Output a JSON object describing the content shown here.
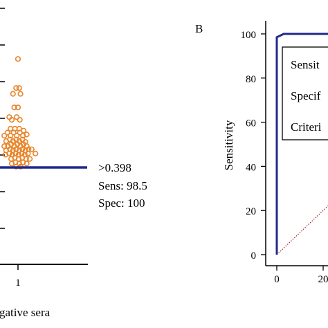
{
  "chart_data": [
    {
      "type": "scatter",
      "panel_label": "",
      "x_tick_labels": [
        "1"
      ],
      "xlabel": "gative sera",
      "ylabel": "",
      "points_relative_to_cutoff": [
        [
          0.0,
          2.8
        ],
        [
          -0.03,
          2.05
        ],
        [
          0.02,
          2.05
        ],
        [
          -0.08,
          1.9
        ],
        [
          0.04,
          1.9
        ],
        [
          -0.06,
          1.55
        ],
        [
          0.0,
          1.55
        ],
        [
          -0.14,
          1.3
        ],
        [
          -0.1,
          1.23
        ],
        [
          -0.02,
          1.3
        ],
        [
          0.03,
          1.23
        ],
        [
          -0.12,
          1.0
        ],
        [
          -0.05,
          1.0
        ],
        [
          0.02,
          1.0
        ],
        [
          0.09,
          0.95
        ],
        [
          -0.22,
          0.82
        ],
        [
          -0.17,
          0.9
        ],
        [
          -0.12,
          0.82
        ],
        [
          -0.07,
          0.9
        ],
        [
          -0.02,
          0.82
        ],
        [
          0.03,
          0.9
        ],
        [
          0.08,
          0.82
        ],
        [
          0.14,
          0.85
        ],
        [
          -0.19,
          0.68
        ],
        [
          -0.13,
          0.72
        ],
        [
          -0.08,
          0.68
        ],
        [
          -0.03,
          0.72
        ],
        [
          0.02,
          0.68
        ],
        [
          0.07,
          0.72
        ],
        [
          0.12,
          0.66
        ],
        [
          -0.22,
          0.55
        ],
        [
          -0.16,
          0.55
        ],
        [
          -0.11,
          0.6
        ],
        [
          -0.06,
          0.55
        ],
        [
          -0.01,
          0.6
        ],
        [
          0.04,
          0.55
        ],
        [
          0.09,
          0.6
        ],
        [
          0.14,
          0.55
        ],
        [
          -0.19,
          0.44
        ],
        [
          -0.13,
          0.47
        ],
        [
          -0.08,
          0.44
        ],
        [
          -0.03,
          0.47
        ],
        [
          0.02,
          0.44
        ],
        [
          0.07,
          0.47
        ],
        [
          0.12,
          0.44
        ],
        [
          0.17,
          0.47
        ],
        [
          0.22,
          0.47
        ],
        [
          -0.2,
          0.33
        ],
        [
          -0.14,
          0.36
        ],
        [
          -0.09,
          0.33
        ],
        [
          -0.04,
          0.36
        ],
        [
          0.01,
          0.33
        ],
        [
          0.06,
          0.36
        ],
        [
          0.11,
          0.33
        ],
        [
          0.16,
          0.36
        ],
        [
          0.28,
          0.36
        ],
        [
          -0.11,
          0.22
        ],
        [
          -0.05,
          0.25
        ],
        [
          0.01,
          0.22
        ],
        [
          0.07,
          0.25
        ],
        [
          0.13,
          0.22
        ],
        [
          0.19,
          0.22
        ],
        [
          -0.1,
          0.1
        ],
        [
          -0.04,
          0.13
        ],
        [
          0.02,
          0.1
        ],
        [
          0.08,
          0.13
        ],
        [
          0.14,
          0.1
        ],
        [
          -0.03,
          0.02
        ],
        [
          0.04,
          0.02
        ]
      ],
      "cutoff_criterion": ">0.398",
      "sensitivity_label": "Sens: 98.5",
      "specificity_label": "Spec: 100",
      "colors": {
        "points": "#e8852a",
        "cutoff_line": "#1f2a8c",
        "axis": "#000000"
      }
    },
    {
      "type": "line",
      "panel_label": "B",
      "ylabel": "Sensitivity",
      "xlabel": "",
      "x_tick_labels": [
        "0",
        "20"
      ],
      "y_tick_labels": [
        "0",
        "20",
        "40",
        "60",
        "80",
        "100"
      ],
      "xlim": [
        0,
        100
      ],
      "ylim": [
        0,
        100
      ],
      "series": [
        {
          "role": "roc_curve",
          "x": [
            0,
            0,
            3,
            100
          ],
          "y": [
            0,
            98.5,
            100,
            100
          ],
          "color": "#1f2a8c"
        },
        {
          "role": "reference_diagonal",
          "x": [
            0,
            100
          ],
          "y": [
            0,
            100
          ],
          "color": "#a0302b"
        }
      ],
      "legend_lines": [
        "Sensit",
        "Specif",
        "Criteri"
      ],
      "legend_position": "top-right"
    }
  ]
}
